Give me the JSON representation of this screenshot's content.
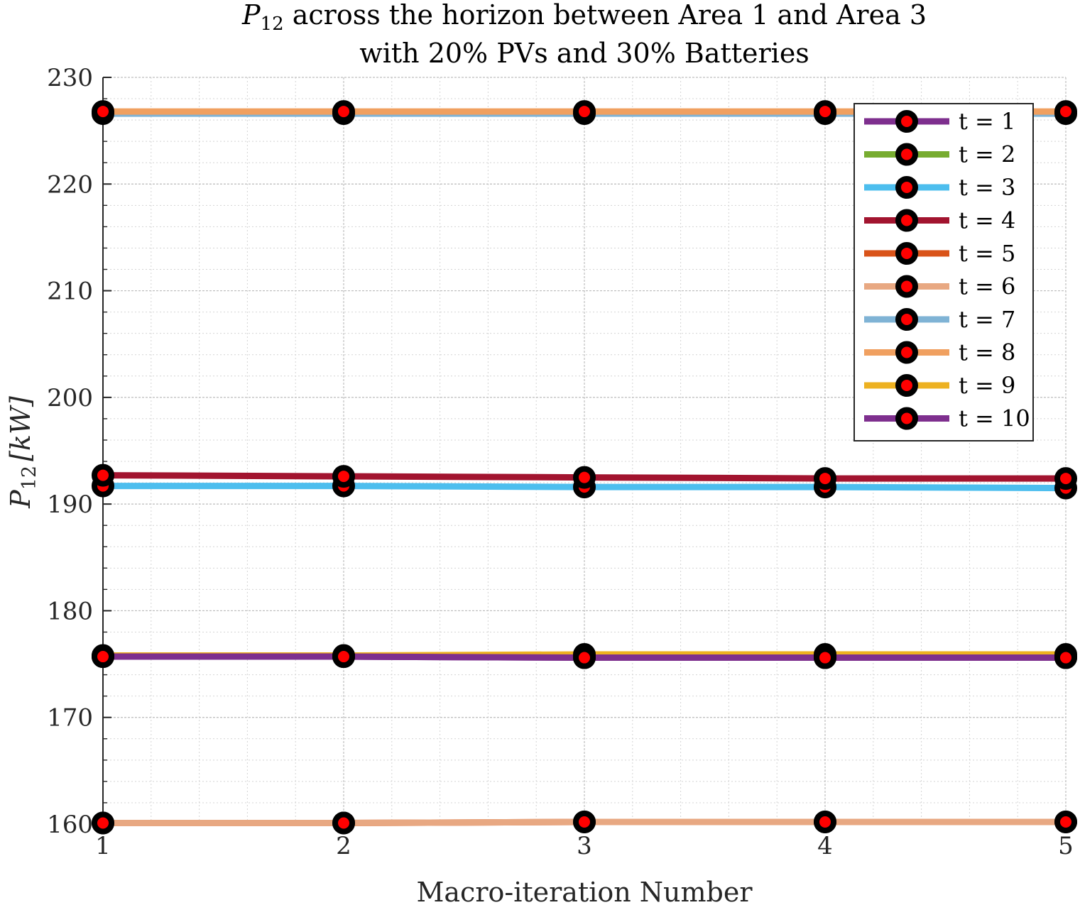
{
  "chart_data": {
    "type": "line",
    "title": {
      "symbol": "P",
      "subscript": "12",
      "line1_rest": " across the horizon between Area 1 and Area 3",
      "line2": "with 20% PVs and 30% Batteries"
    },
    "xlabel": "Macro-iteration Number",
    "ylabel": {
      "symbol": "P",
      "subscript": "12",
      "unit": "[kW]"
    },
    "x": [
      1,
      2,
      3,
      4,
      5
    ],
    "xlim": [
      1,
      5
    ],
    "ylim": [
      160,
      230
    ],
    "xticks": [
      "1",
      "2",
      "3",
      "4",
      "5"
    ],
    "yticks": [
      "160",
      "170",
      "180",
      "190",
      "200",
      "210",
      "220",
      "230"
    ],
    "grid": true,
    "minor_grid": true,
    "legend_position": "top-right",
    "marker": {
      "face": "#ff0000",
      "edge": "#000000"
    },
    "series": [
      {
        "name": "t = 1",
        "color": "#7E2F8E",
        "values": [
          175.7,
          175.7,
          175.6,
          175.6,
          175.6
        ]
      },
      {
        "name": "t = 2",
        "color": "#77AC30",
        "values": [
          175.7,
          175.7,
          175.7,
          175.7,
          175.7
        ]
      },
      {
        "name": "t = 3",
        "color": "#4DBEEE",
        "values": [
          191.7,
          191.7,
          191.6,
          191.6,
          191.5
        ]
      },
      {
        "name": "t = 4",
        "color": "#A2142F",
        "values": [
          192.7,
          192.6,
          192.5,
          192.4,
          192.4
        ]
      },
      {
        "name": "t = 5",
        "color": "#D95319",
        "values": [
          160.1,
          160.1,
          160.2,
          160.2,
          160.2
        ]
      },
      {
        "name": "t = 6",
        "color": "#E8A882",
        "values": [
          160.1,
          160.1,
          160.2,
          160.2,
          160.2
        ]
      },
      {
        "name": "t = 7",
        "color": "#7FB3D5",
        "values": [
          226.6,
          226.6,
          226.6,
          226.6,
          226.6
        ]
      },
      {
        "name": "t = 8",
        "color": "#F0A060",
        "values": [
          226.8,
          226.8,
          226.8,
          226.8,
          226.8
        ]
      },
      {
        "name": "t = 9",
        "color": "#EDB120",
        "values": [
          175.8,
          175.8,
          175.9,
          175.9,
          175.9
        ]
      },
      {
        "name": "t = 10",
        "color": "#7E2F8E",
        "values": [
          175.7,
          175.7,
          175.6,
          175.6,
          175.6
        ]
      }
    ]
  }
}
